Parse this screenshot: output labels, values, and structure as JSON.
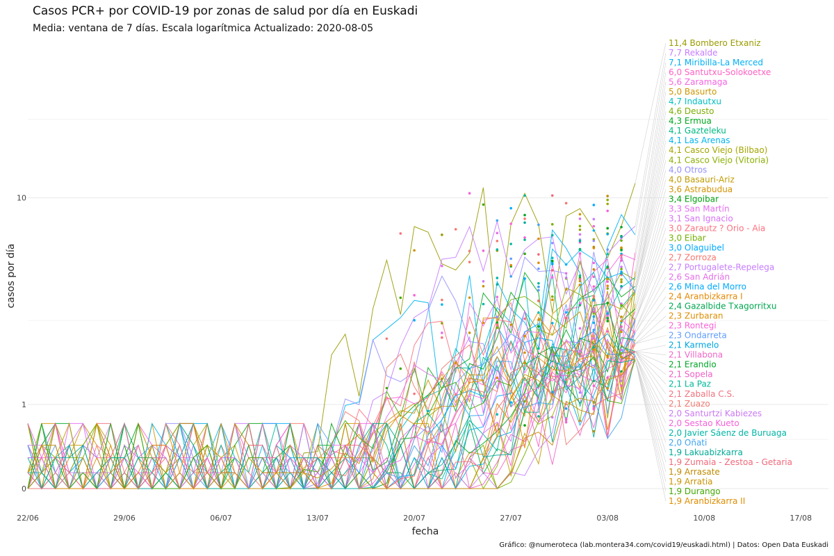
{
  "chart_data": {
    "type": "line",
    "title": "Casos PCR+ por COVID-19 por zonas de salud por día en Euskadi",
    "subtitle": "Media: ventana de 7 días. Escala logarítmica Actualizado: 2020-08-05",
    "xlabel": "fecha",
    "ylabel": "casos por día",
    "caption": "Gráfico: @numeroteca (lab.montera34.com/covid19/euskadi.html) | Datos: Open Data Euskadi",
    "x_range": [
      "2020-06-22",
      "2020-08-19"
    ],
    "x_ticks": [
      {
        "date": "2020-06-22",
        "label": "22/06"
      },
      {
        "date": "2020-06-29",
        "label": "29/06"
      },
      {
        "date": "2020-07-06",
        "label": "06/07"
      },
      {
        "date": "2020-07-13",
        "label": "13/07"
      },
      {
        "date": "2020-07-20",
        "label": "20/07"
      },
      {
        "date": "2020-07-27",
        "label": "27/07"
      },
      {
        "date": "2020-08-03",
        "label": "03/08"
      },
      {
        "date": "2020-08-10",
        "label": "10/08"
      },
      {
        "date": "2020-08-17",
        "label": "17/08"
      }
    ],
    "y_scale": "log1p",
    "y_range": [
      0,
      40
    ],
    "y_ticks": [
      {
        "value": 0,
        "label": "0"
      },
      {
        "value": 1,
        "label": "1"
      },
      {
        "value": 10,
        "label": "10"
      }
    ],
    "grid": true,
    "legend": "none",
    "series": [
      {
        "name": "Bombero Etxaniz",
        "label": "11,4 Bombero Etxaniz",
        "color": "#9a9a00",
        "last": 11.4
      },
      {
        "name": "Rekalde",
        "label": "7,7 Rekalde",
        "color": "#c77cff",
        "last": 7.7
      },
      {
        "name": "Miribilla-La Merced",
        "label": "7,1 Miribilla-La Merced",
        "color": "#00b0f6",
        "last": 7.1
      },
      {
        "name": "Santutxu-Solokoetxe",
        "label": "6,0 Santutxu-Solokoetxe",
        "color": "#ff61c3",
        "last": 6.0
      },
      {
        "name": "Zaramaga",
        "label": "5,6 Zaramaga",
        "color": "#f564e3",
        "last": 5.6
      },
      {
        "name": "Basurto",
        "label": "5,0 Basurto",
        "color": "#cd9600",
        "last": 5.0
      },
      {
        "name": "Indautxu",
        "label": "4,7 Indautxu",
        "color": "#00bfc4",
        "last": 4.7
      },
      {
        "name": "Deusto",
        "label": "4,6 Deusto",
        "color": "#7cae00",
        "last": 4.6
      },
      {
        "name": "Ermua",
        "label": "4,3 Ermua",
        "color": "#00a91c",
        "last": 4.3
      },
      {
        "name": "Gazteleku",
        "label": "4,1 Gazteleku",
        "color": "#00b981",
        "last": 4.1
      },
      {
        "name": "Las Arenas",
        "label": "4,1 Las Arenas",
        "color": "#00b4ef",
        "last": 4.1
      },
      {
        "name": "Casco Viejo (Bilbao)",
        "label": "4,1 Casco Viejo (Bilbao)",
        "color": "#a3a500",
        "last": 4.1
      },
      {
        "name": "Casco Viejo (Vitoria)",
        "label": "4,1 Casco Viejo (Vitoria)",
        "color": "#8ab000",
        "last": 4.1
      },
      {
        "name": "Otros",
        "label": "4,0 Otros",
        "color": "#9590ff",
        "last": 4.0
      },
      {
        "name": "Basauri-Ariz",
        "label": "4,0 Basauri-Ariz",
        "color": "#c09b00",
        "last": 4.0
      },
      {
        "name": "Astrabudua",
        "label": "3,6 Astrabudua",
        "color": "#d39200",
        "last": 3.6
      },
      {
        "name": "Elgoibar",
        "label": "3,4 Elgoibar",
        "color": "#00a30f",
        "last": 3.4
      },
      {
        "name": "San Martín",
        "label": "3,3 San Martín",
        "color": "#e76bf3",
        "last": 3.3
      },
      {
        "name": "San Ignacio",
        "label": "3,1 San Ignacio",
        "color": "#d770f5",
        "last": 3.1
      },
      {
        "name": "Zarautz ? Orio - Aia",
        "label": "3,0 Zarautz ? Orio - Aia",
        "color": "#fc717f",
        "last": 3.0
      },
      {
        "name": "Eibar",
        "label": "3,0 Eibar",
        "color": "#72b000",
        "last": 3.0
      },
      {
        "name": "Olaguibel",
        "label": "3,0 Olaguibel",
        "color": "#00a9ff",
        "last": 3.0
      },
      {
        "name": "Zorroza",
        "label": "2,7 Zorroza",
        "color": "#f8766d",
        "last": 2.7
      },
      {
        "name": "Portugalete-Repelega",
        "label": "2,7 Portugalete-Repelega",
        "color": "#c77cff",
        "last": 2.7
      },
      {
        "name": "San Adrián",
        "label": "2,6 San Adrián",
        "color": "#e56ee6",
        "last": 2.6
      },
      {
        "name": "Mina del Morro",
        "label": "2,6 Mina del Morro",
        "color": "#00abfd",
        "last": 2.6
      },
      {
        "name": "Aranbizkarra I",
        "label": "2,4 Aranbizkarra I",
        "color": "#e58700",
        "last": 2.4
      },
      {
        "name": "Gazalbide Txagorritxu",
        "label": "2,4 Gazalbide Txagorritxu",
        "color": "#00a84f",
        "last": 2.4
      },
      {
        "name": "Zurbaran",
        "label": "2,3 Zurbaran",
        "color": "#dd8d00",
        "last": 2.3
      },
      {
        "name": "Rontegi",
        "label": "2,3 Rontegi",
        "color": "#fb61d7",
        "last": 2.3
      },
      {
        "name": "Ondarreta",
        "label": "2,3 Ondarreta",
        "color": "#619cff",
        "last": 2.3
      },
      {
        "name": "Karmelo",
        "label": "2,1 Karmelo",
        "color": "#00a6e0",
        "last": 2.1
      },
      {
        "name": "Villabona",
        "label": "2,1 Villabona",
        "color": "#f265c8",
        "last": 2.1
      },
      {
        "name": "Erandio",
        "label": "2,1 Erandio",
        "color": "#00a628",
        "last": 2.1
      },
      {
        "name": "Sopela",
        "label": "2,1 Sopela",
        "color": "#f25dc6",
        "last": 2.1
      },
      {
        "name": "La Paz",
        "label": "2,1 La Paz",
        "color": "#00b89a",
        "last": 2.1
      },
      {
        "name": "Zaballa C.S.",
        "label": "2,1 Zaballa C.S.",
        "color": "#f1727e",
        "last": 2.1
      },
      {
        "name": "Zuazo",
        "label": "2,1 Zuazo",
        "color": "#f07c72",
        "last": 2.1
      },
      {
        "name": "Santurtzi Kabiezes",
        "label": "2,0 Santurtzi Kabiezes",
        "color": "#ca79f2",
        "last": 2.0
      },
      {
        "name": "Sestao Kueto",
        "label": "2,0 Sestao Kueto",
        "color": "#f561db",
        "last": 2.0
      },
      {
        "name": "Javier Sáenz de Buruaga",
        "label": "2,0 Javier Sáenz de Buruaga",
        "color": "#00b5a5",
        "last": 2.0
      },
      {
        "name": "Oñati",
        "label": "2,0 Oñati",
        "color": "#3ea4f0",
        "last": 2.0
      },
      {
        "name": "Lakuabizkarra",
        "label": "1,9 Lakuabizkarra",
        "color": "#00aa96",
        "last": 1.9
      },
      {
        "name": "Zumaia - Zestoa - Getaria",
        "label": "1,9 Zumaia - Zestoa - Getaria",
        "color": "#f2687a",
        "last": 1.9
      },
      {
        "name": "Arrasate",
        "label": "1,9 Arrasate",
        "color": "#c08a00",
        "last": 1.9
      },
      {
        "name": "Arratia",
        "label": "1,9 Arratia",
        "color": "#c99200",
        "last": 1.9
      },
      {
        "name": "Durango",
        "label": "1,9 Durango",
        "color": "#42a800",
        "last": 1.9
      },
      {
        "name": "Aranbizkarra II",
        "label": "1,9 Aranbizkarra II",
        "color": "#de8c00",
        "last": 1.9
      }
    ]
  }
}
